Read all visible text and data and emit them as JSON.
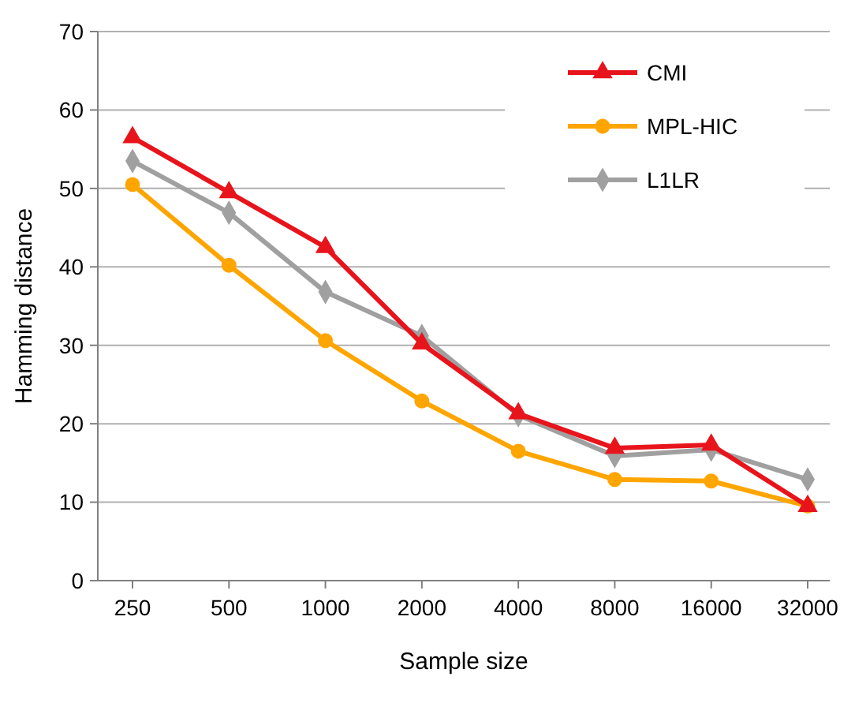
{
  "chart_data": {
    "type": "line",
    "xlabel": "Sample size",
    "ylabel": "Hamming distance",
    "categories": [
      "250",
      "500",
      "1000",
      "2000",
      "4000",
      "8000",
      "16000",
      "32000"
    ],
    "ylim": [
      0,
      70
    ],
    "yticks": [
      0,
      10,
      20,
      30,
      40,
      50,
      60,
      70
    ],
    "grid": "y",
    "legend": "top right",
    "series": [
      {
        "name": "CMI",
        "color": "#e8141c",
        "marker": "triangle",
        "values": [
          56.5,
          49.5,
          42.5,
          30.2,
          21.3,
          16.9,
          17.3,
          9.5
        ]
      },
      {
        "name": "MPL-HIC",
        "color": "#ffa500",
        "marker": "circle",
        "values": [
          50.5,
          40.2,
          30.6,
          22.9,
          16.5,
          12.9,
          12.7,
          9.5
        ]
      },
      {
        "name": "L1LR",
        "color": "#a0a0a0",
        "marker": "diamond",
        "values": [
          53.5,
          46.9,
          36.8,
          31.2,
          21.1,
          15.9,
          16.7,
          12.9
        ]
      }
    ]
  }
}
